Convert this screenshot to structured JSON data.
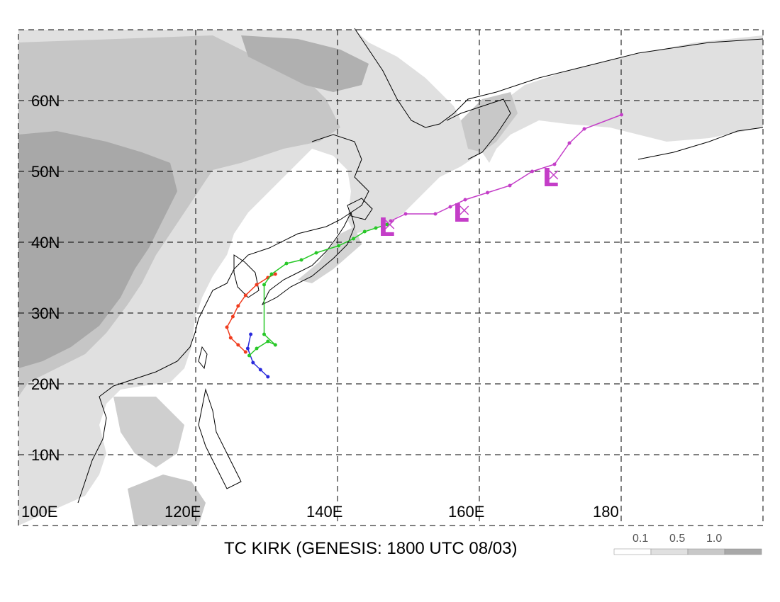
{
  "title": "TC KIRK (GENESIS: 1800 UTC 08/03)",
  "lat_labels": [
    "60N",
    "50N",
    "40N",
    "30N",
    "20N",
    "10N"
  ],
  "lon_labels": [
    "100E",
    "120E",
    "140E",
    "160E",
    "180"
  ],
  "legend": {
    "labels": [
      "0.1",
      "0.5",
      "1.0"
    ],
    "colors": [
      "#ffffff",
      "#e0e0e0",
      "#c8c8c8",
      "#a8a8a8"
    ]
  },
  "colors": {
    "land_light": "#dcdcdc",
    "land_mid": "#c4c4c4",
    "land_dark": "#a9a9a9",
    "track_blue": "#2a2adc",
    "track_red": "#f03c1e",
    "track_green": "#28c828",
    "track_magenta": "#c43ec8"
  },
  "map_extent": {
    "lon": [
      100,
      200
    ],
    "lat": [
      0,
      70
    ]
  },
  "tracks": {
    "blue": {
      "points": [
        [
          133.5,
          21.0
        ],
        [
          132.5,
          22.0
        ],
        [
          131.5,
          23.0
        ],
        [
          130.8,
          25.0
        ],
        [
          131.2,
          27.0
        ]
      ]
    },
    "red": {
      "points": [
        [
          130.5,
          24.5
        ],
        [
          129.5,
          25.5
        ],
        [
          128.5,
          26.5
        ],
        [
          128.0,
          28.0
        ],
        [
          128.8,
          29.5
        ],
        [
          129.5,
          31.0
        ],
        [
          130.5,
          32.5
        ],
        [
          132.0,
          34.0
        ],
        [
          133.5,
          35.0
        ],
        [
          134.5,
          35.5
        ]
      ]
    },
    "green": {
      "points": [
        [
          131.0,
          24.0
        ],
        [
          132.0,
          25.0
        ],
        [
          133.5,
          26.0
        ],
        [
          134.5,
          25.5
        ],
        [
          133.0,
          27.0
        ],
        [
          133.0,
          34.0
        ],
        [
          134.0,
          35.5
        ],
        [
          136.0,
          37.0
        ],
        [
          138.0,
          37.5
        ],
        [
          140.0,
          38.5
        ],
        [
          143.0,
          39.5
        ],
        [
          145.0,
          40.5
        ],
        [
          146.5,
          41.5
        ],
        [
          148.0,
          42.0
        ],
        [
          149.5,
          42.5
        ]
      ]
    },
    "magenta": {
      "points": [
        [
          150.0,
          43.0
        ],
        [
          152.0,
          44.0
        ],
        [
          156.0,
          44.0
        ],
        [
          158.0,
          45.0
        ],
        [
          160.0,
          46.0
        ],
        [
          163.0,
          47.0
        ],
        [
          166.0,
          48.0
        ],
        [
          169.0,
          50.0
        ],
        [
          172.0,
          51.0
        ],
        [
          174.0,
          54.0
        ],
        [
          176.0,
          56.0
        ],
        [
          181.0,
          58.0
        ]
      ]
    }
  },
  "track_symbols": [
    {
      "symbol": "L",
      "color": "magenta",
      "at": [
        149.5,
        42.5
      ]
    },
    {
      "symbol": "L",
      "color": "magenta",
      "at": [
        159.5,
        44.5
      ]
    },
    {
      "symbol": "L",
      "color": "magenta",
      "at": [
        171.5,
        49.5
      ]
    }
  ]
}
